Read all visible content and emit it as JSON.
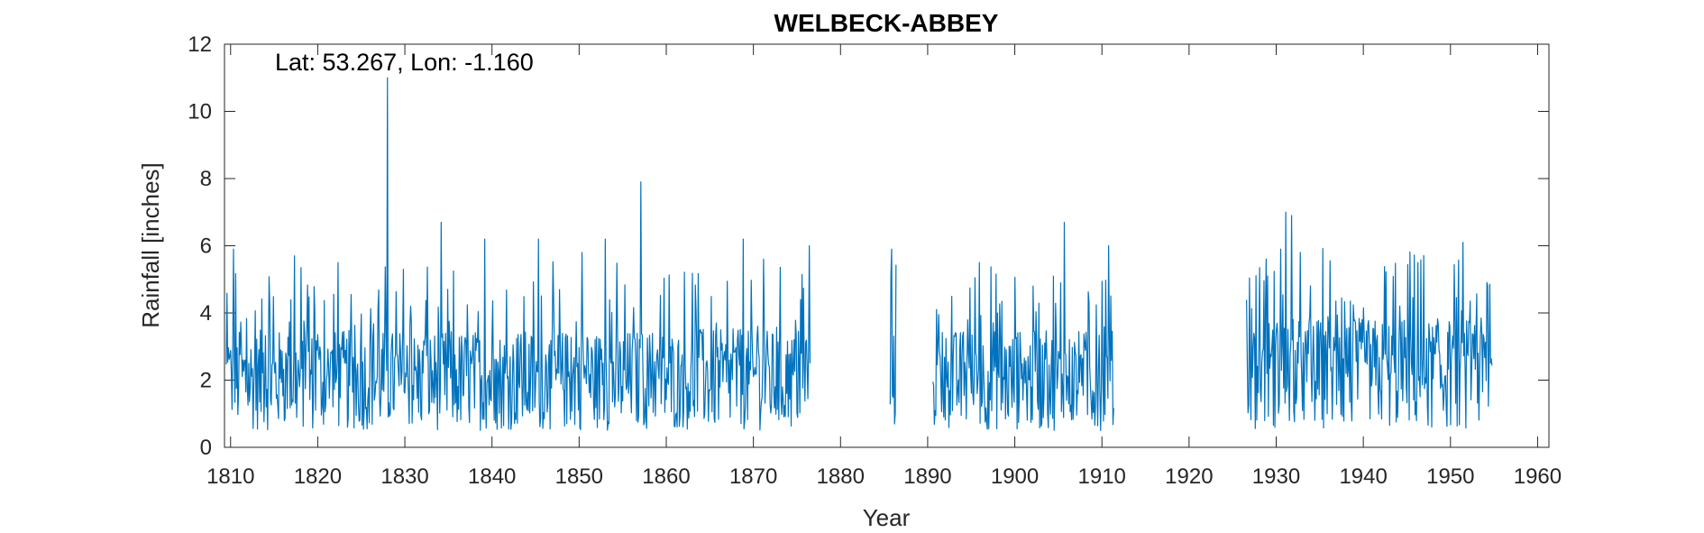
{
  "chart_data": {
    "type": "line",
    "title": "WELBECK-ABBEY",
    "annotation": "Lat: 53.267, Lon: -1.160",
    "xlabel": "Year",
    "ylabel": "Rainfall [inches]",
    "xlim": [
      1809.3,
      1961.3
    ],
    "ylim": [
      0,
      12
    ],
    "xticks": [
      1810,
      1820,
      1830,
      1840,
      1850,
      1860,
      1870,
      1880,
      1890,
      1900,
      1910,
      1920,
      1930,
      1940,
      1950,
      1960
    ],
    "yticks": [
      0,
      2,
      4,
      6,
      8,
      10,
      12
    ],
    "grid": false,
    "line_color": "#0072BD",
    "series": [
      {
        "segments": [
          {
            "x_start": 1809.5,
            "x_end": 1876.5,
            "mean": 2.0,
            "spikes": [
              [
                1810.3,
                5.9
              ],
              [
                1817.3,
                5.7
              ],
              [
                1822.3,
                5.5
              ],
              [
                1828.0,
                11.0
              ],
              [
                1829.8,
                5.3
              ],
              [
                1834.2,
                6.7
              ],
              [
                1839.2,
                6.2
              ],
              [
                1845.3,
                6.2
              ],
              [
                1850.3,
                5.8
              ],
              [
                1853.0,
                6.2
              ],
              [
                1857.1,
                7.9
              ],
              [
                1868.8,
                6.2
              ],
              [
                1871.2,
                5.6
              ],
              [
                1876.4,
                6.0
              ]
            ]
          },
          {
            "x_start": 1885.7,
            "x_end": 1886.4,
            "mean": 2.0,
            "spikes": [
              [
                1885.9,
                5.9
              ]
            ]
          },
          {
            "x_start": 1890.6,
            "x_end": 1911.4,
            "mean": 2.0,
            "spikes": [
              [
                1891.0,
                4.1
              ],
              [
                1895.9,
                5.5
              ],
              [
                1902.1,
                4.8
              ],
              [
                1905.7,
                6.7
              ],
              [
                1910.8,
                6.0
              ]
            ]
          },
          {
            "x_start": 1926.6,
            "x_end": 1954.8,
            "mean": 2.2,
            "spikes": [
              [
                1929.0,
                5.1
              ],
              [
                1930.5,
                5.9
              ],
              [
                1931.1,
                7.0
              ],
              [
                1931.8,
                6.9
              ],
              [
                1946.3,
                5.5
              ],
              [
                1951.4,
                6.1
              ],
              [
                1954.3,
                4.8
              ]
            ]
          }
        ]
      }
    ]
  }
}
